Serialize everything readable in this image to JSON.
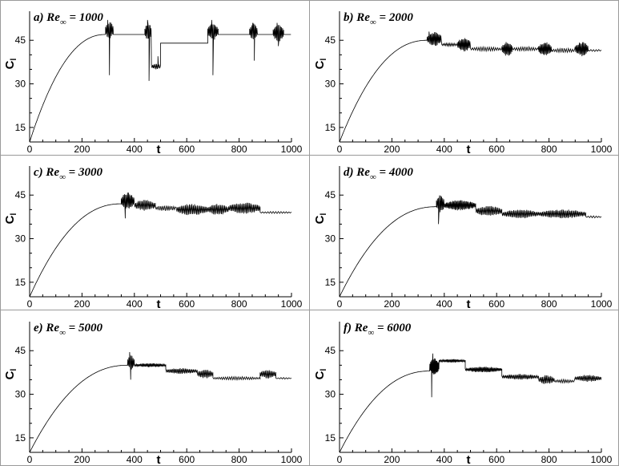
{
  "figure": {
    "panels": [
      {
        "title_prefix": "a) Re",
        "title_sub": "∞",
        "title_suffix": " = 1000"
      },
      {
        "title_prefix": "b) Re",
        "title_sub": "∞",
        "title_suffix": " = 2000"
      },
      {
        "title_prefix": "c) Re",
        "title_sub": "∞",
        "title_suffix": " = 3000"
      },
      {
        "title_prefix": "d) Re",
        "title_sub": "∞",
        "title_suffix": " = 4000"
      },
      {
        "title_prefix": "e) Re",
        "title_sub": "∞",
        "title_suffix": " = 5000"
      },
      {
        "title_prefix": "f) Re",
        "title_sub": "∞",
        "title_suffix": " = 6000"
      }
    ]
  },
  "chart_data": [
    {
      "type": "line",
      "title": "a) Re∞ = 1000",
      "xlabel": "t",
      "ylabel": "Cl",
      "xlim": [
        0,
        1000
      ],
      "ylim": [
        10,
        55
      ],
      "xticks": [
        0,
        200,
        400,
        600,
        800,
        1000
      ],
      "yticks": [
        15,
        30,
        45
      ],
      "series": [
        {
          "name": "Cl",
          "growth": {
            "t_start": 0,
            "t_end": 290,
            "y_start": 10,
            "y_end": 47
          },
          "segments": [
            {
              "t0": 290,
              "t1": 320,
              "base": 48.5,
              "amp": 3,
              "period": 4,
              "spikes": [
                [
                  298,
                  52
                ],
                [
                  305,
                  33
                ]
              ]
            },
            {
              "t0": 320,
              "t1": 440,
              "base": 47,
              "amp": 0,
              "period": 0,
              "spikes": []
            },
            {
              "t0": 440,
              "t1": 465,
              "base": 48,
              "amp": 3,
              "period": 4,
              "spikes": [
                [
                  450,
                  52
                ],
                [
                  456,
                  31
                ]
              ]
            },
            {
              "t0": 465,
              "t1": 500,
              "base": 36,
              "amp": 1,
              "period": 5,
              "spikes": [
                [
                  490,
                  39.5
                ],
                [
                  495,
                  36
                ]
              ]
            },
            {
              "t0": 500,
              "t1": 680,
              "base": 44,
              "amp": 0,
              "period": 0,
              "spikes": []
            },
            {
              "t0": 680,
              "t1": 720,
              "base": 48,
              "amp": 3,
              "period": 4,
              "spikes": [
                [
                  695,
                  52
                ],
                [
                  700,
                  33
                ]
              ]
            },
            {
              "t0": 720,
              "t1": 840,
              "base": 47,
              "amp": 0,
              "period": 0,
              "spikes": []
            },
            {
              "t0": 840,
              "t1": 870,
              "base": 48,
              "amp": 3,
              "period": 4,
              "spikes": [
                [
                  853,
                  51
                ],
                [
                  858,
                  38
                ]
              ]
            },
            {
              "t0": 870,
              "t1": 930,
              "base": 47,
              "amp": 0,
              "period": 0,
              "spikes": []
            },
            {
              "t0": 930,
              "t1": 970,
              "base": 47.5,
              "amp": 3,
              "period": 4,
              "spikes": [
                [
                  945,
                  51
                ],
                [
                  950,
                  43
                ]
              ]
            },
            {
              "t0": 970,
              "t1": 1000,
              "base": 47,
              "amp": 0,
              "period": 0,
              "spikes": []
            }
          ]
        }
      ]
    },
    {
      "type": "line",
      "title": "b) Re∞ = 2000",
      "xlabel": "t",
      "ylabel": "Cl",
      "xlim": [
        0,
        1000
      ],
      "ylim": [
        10,
        55
      ],
      "xticks": [
        0,
        200,
        400,
        600,
        800,
        1000
      ],
      "yticks": [
        15,
        30,
        45
      ],
      "series": [
        {
          "name": "Cl",
          "growth": {
            "t_start": 0,
            "t_end": 335,
            "y_start": 10,
            "y_end": 45
          },
          "segments": [
            {
              "t0": 335,
              "t1": 390,
              "base": 45.5,
              "amp": 2.5,
              "period": 4,
              "spikes": [
                [
                  342,
                  48
                ]
              ]
            },
            {
              "t0": 390,
              "t1": 450,
              "base": 43.5,
              "amp": 0.6,
              "period": 6,
              "spikes": []
            },
            {
              "t0": 450,
              "t1": 500,
              "base": 43.5,
              "amp": 2.5,
              "period": 4,
              "spikes": []
            },
            {
              "t0": 500,
              "t1": 620,
              "base": 42,
              "amp": 0.8,
              "period": 8,
              "spikes": []
            },
            {
              "t0": 620,
              "t1": 660,
              "base": 42,
              "amp": 2.5,
              "period": 4,
              "spikes": []
            },
            {
              "t0": 660,
              "t1": 760,
              "base": 42,
              "amp": 0.8,
              "period": 8,
              "spikes": []
            },
            {
              "t0": 760,
              "t1": 810,
              "base": 42,
              "amp": 2.5,
              "period": 4,
              "spikes": []
            },
            {
              "t0": 810,
              "t1": 900,
              "base": 41.5,
              "amp": 0.8,
              "period": 8,
              "spikes": []
            },
            {
              "t0": 900,
              "t1": 950,
              "base": 42,
              "amp": 2.5,
              "period": 4,
              "spikes": []
            },
            {
              "t0": 950,
              "t1": 1000,
              "base": 41.5,
              "amp": 0.4,
              "period": 10,
              "spikes": []
            }
          ]
        }
      ]
    },
    {
      "type": "line",
      "title": "c) Re∞ = 3000",
      "xlabel": "t",
      "ylabel": "Cl",
      "xlim": [
        0,
        1000
      ],
      "ylim": [
        10,
        55
      ],
      "xticks": [
        0,
        200,
        400,
        600,
        800,
        1000
      ],
      "yticks": [
        15,
        30,
        45
      ],
      "series": [
        {
          "name": "Cl",
          "growth": {
            "t_start": 0,
            "t_end": 350,
            "y_start": 10,
            "y_end": 42
          },
          "segments": [
            {
              "t0": 350,
              "t1": 400,
              "base": 43,
              "amp": 3,
              "period": 4,
              "spikes": [
                [
                  365,
                  37
                ]
              ]
            },
            {
              "t0": 400,
              "t1": 480,
              "base": 41.5,
              "amp": 2,
              "period": 5,
              "spikes": []
            },
            {
              "t0": 480,
              "t1": 560,
              "base": 40.5,
              "amp": 1,
              "period": 7,
              "spikes": []
            },
            {
              "t0": 560,
              "t1": 680,
              "base": 40,
              "amp": 2,
              "period": 5,
              "spikes": []
            },
            {
              "t0": 680,
              "t1": 760,
              "base": 40,
              "amp": 2,
              "period": 5,
              "spikes": []
            },
            {
              "t0": 760,
              "t1": 880,
              "base": 40.5,
              "amp": 2,
              "period": 5,
              "spikes": []
            },
            {
              "t0": 880,
              "t1": 1000,
              "base": 39,
              "amp": 0.4,
              "period": 10,
              "spikes": []
            }
          ]
        }
      ]
    },
    {
      "type": "line",
      "title": "d) Re∞ = 4000",
      "xlabel": "t",
      "ylabel": "Cl",
      "xlim": [
        0,
        1000
      ],
      "ylim": [
        10,
        55
      ],
      "xticks": [
        0,
        200,
        400,
        600,
        800,
        1000
      ],
      "yticks": [
        15,
        30,
        45
      ],
      "series": [
        {
          "name": "Cl",
          "growth": {
            "t_start": 0,
            "t_end": 370,
            "y_start": 10,
            "y_end": 41
          },
          "segments": [
            {
              "t0": 370,
              "t1": 400,
              "base": 42,
              "amp": 3,
              "period": 4,
              "spikes": [
                [
                  378,
                  35
                ]
              ]
            },
            {
              "t0": 400,
              "t1": 520,
              "base": 41.5,
              "amp": 1.8,
              "period": 4,
              "spikes": []
            },
            {
              "t0": 520,
              "t1": 620,
              "base": 39.5,
              "amp": 1.8,
              "period": 5,
              "spikes": []
            },
            {
              "t0": 620,
              "t1": 760,
              "base": 38.5,
              "amp": 1.6,
              "period": 5,
              "spikes": []
            },
            {
              "t0": 760,
              "t1": 940,
              "base": 38.5,
              "amp": 1.6,
              "period": 5,
              "spikes": []
            },
            {
              "t0": 940,
              "t1": 1000,
              "base": 37.5,
              "amp": 0.4,
              "period": 10,
              "spikes": []
            }
          ]
        }
      ]
    },
    {
      "type": "line",
      "title": "e) Re∞ = 5000",
      "xlabel": "t",
      "ylabel": "Cl",
      "xlim": [
        0,
        1000
      ],
      "ylim": [
        10,
        55
      ],
      "xticks": [
        0,
        200,
        400,
        600,
        800,
        1000
      ],
      "yticks": [
        15,
        30,
        45
      ],
      "series": [
        {
          "name": "Cl",
          "growth": {
            "t_start": 0,
            "t_end": 375,
            "y_start": 10,
            "y_end": 40
          },
          "segments": [
            {
              "t0": 375,
              "t1": 400,
              "base": 41,
              "amp": 2.5,
              "period": 4,
              "spikes": [
                [
                  382,
                  44.5
                ],
                [
                  386,
                  35
                ]
              ]
            },
            {
              "t0": 400,
              "t1": 520,
              "base": 40,
              "amp": 0.7,
              "period": 4,
              "spikes": []
            },
            {
              "t0": 520,
              "t1": 640,
              "base": 38,
              "amp": 1,
              "period": 5,
              "spikes": []
            },
            {
              "t0": 640,
              "t1": 700,
              "base": 37,
              "amp": 1.6,
              "period": 5,
              "spikes": []
            },
            {
              "t0": 700,
              "t1": 880,
              "base": 35.5,
              "amp": 0.6,
              "period": 8,
              "spikes": []
            },
            {
              "t0": 880,
              "t1": 940,
              "base": 37,
              "amp": 1.6,
              "period": 5,
              "spikes": []
            },
            {
              "t0": 940,
              "t1": 1000,
              "base": 35.5,
              "amp": 0.3,
              "period": 10,
              "spikes": []
            }
          ]
        }
      ]
    },
    {
      "type": "line",
      "title": "f) Re∞ = 6000",
      "xlabel": "t",
      "ylabel": "Cl",
      "xlim": [
        0,
        1000
      ],
      "ylim": [
        10,
        55
      ],
      "xticks": [
        0,
        200,
        400,
        600,
        800,
        1000
      ],
      "yticks": [
        15,
        30,
        45
      ],
      "series": [
        {
          "name": "Cl",
          "growth": {
            "t_start": 0,
            "t_end": 345,
            "y_start": 10,
            "y_end": 38
          },
          "segments": [
            {
              "t0": 345,
              "t1": 380,
              "base": 39.5,
              "amp": 3,
              "period": 3,
              "spikes": [
                [
                  352,
                  29
                ],
                [
                  356,
                  44
                ]
              ]
            },
            {
              "t0": 380,
              "t1": 480,
              "base": 41.5,
              "amp": 0.6,
              "period": 4,
              "spikes": []
            },
            {
              "t0": 480,
              "t1": 620,
              "base": 38.5,
              "amp": 1,
              "period": 4,
              "spikes": []
            },
            {
              "t0": 620,
              "t1": 760,
              "base": 36,
              "amp": 1,
              "period": 5,
              "spikes": []
            },
            {
              "t0": 760,
              "t1": 820,
              "base": 35,
              "amp": 1.6,
              "period": 5,
              "spikes": []
            },
            {
              "t0": 820,
              "t1": 900,
              "base": 34.5,
              "amp": 0.6,
              "period": 7,
              "spikes": []
            },
            {
              "t0": 900,
              "t1": 1000,
              "base": 35.5,
              "amp": 1.2,
              "period": 5,
              "spikes": []
            }
          ]
        }
      ]
    }
  ]
}
